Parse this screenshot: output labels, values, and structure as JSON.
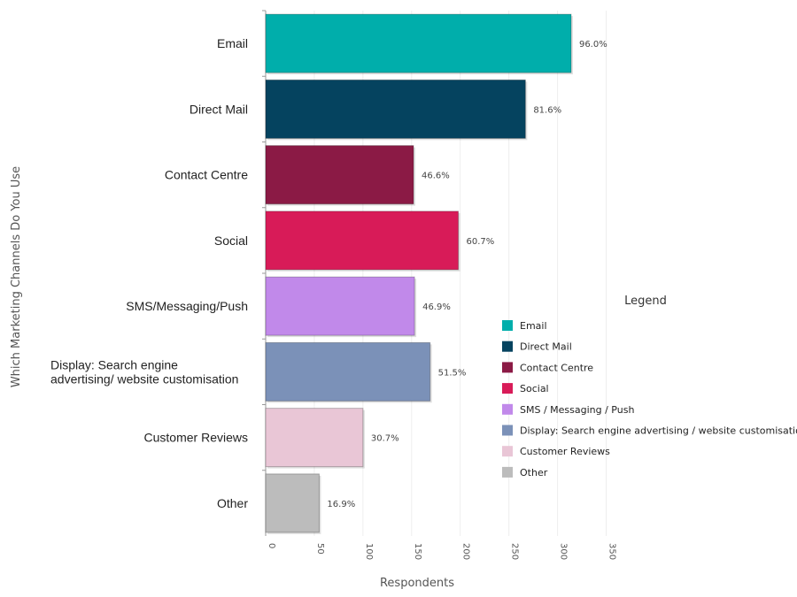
{
  "chart_data": {
    "type": "bar",
    "orientation": "horizontal",
    "categories": [
      "Email",
      "Direct Mail",
      "Contact Centre",
      "Social",
      "SMS/Messaging/Push",
      "Display: Search engine advertising/ website customisation",
      "Customer Reviews",
      "Other"
    ],
    "values": [
      314,
      267,
      152,
      198,
      153,
      169,
      100,
      55
    ],
    "data_labels": [
      "96.0%",
      "81.6%",
      "46.6%",
      "60.7%",
      "46.9%",
      "51.5%",
      "30.7%",
      "16.9%"
    ],
    "colors": [
      "#00aeab",
      "#05435f",
      "#8b1a45",
      "#d81b58",
      "#c189ea",
      "#7b91b8",
      "#e9c6d6",
      "#bcbcbc"
    ],
    "xlabel": "Respondents",
    "ylabel": "Which Marketing Channels Do You Use",
    "xlim": [
      0,
      350
    ],
    "x_ticks": [
      0,
      50,
      100,
      150,
      200,
      250,
      300,
      350
    ],
    "grid": true,
    "legend": {
      "title": "Legend",
      "position": "right",
      "entries": [
        "Email",
        "Direct Mail",
        "Contact Centre",
        "Social",
        "SMS / Messaging / Push",
        "Display: Search engine advertising / website customisation",
        "Customer Reviews",
        "Other"
      ]
    }
  }
}
